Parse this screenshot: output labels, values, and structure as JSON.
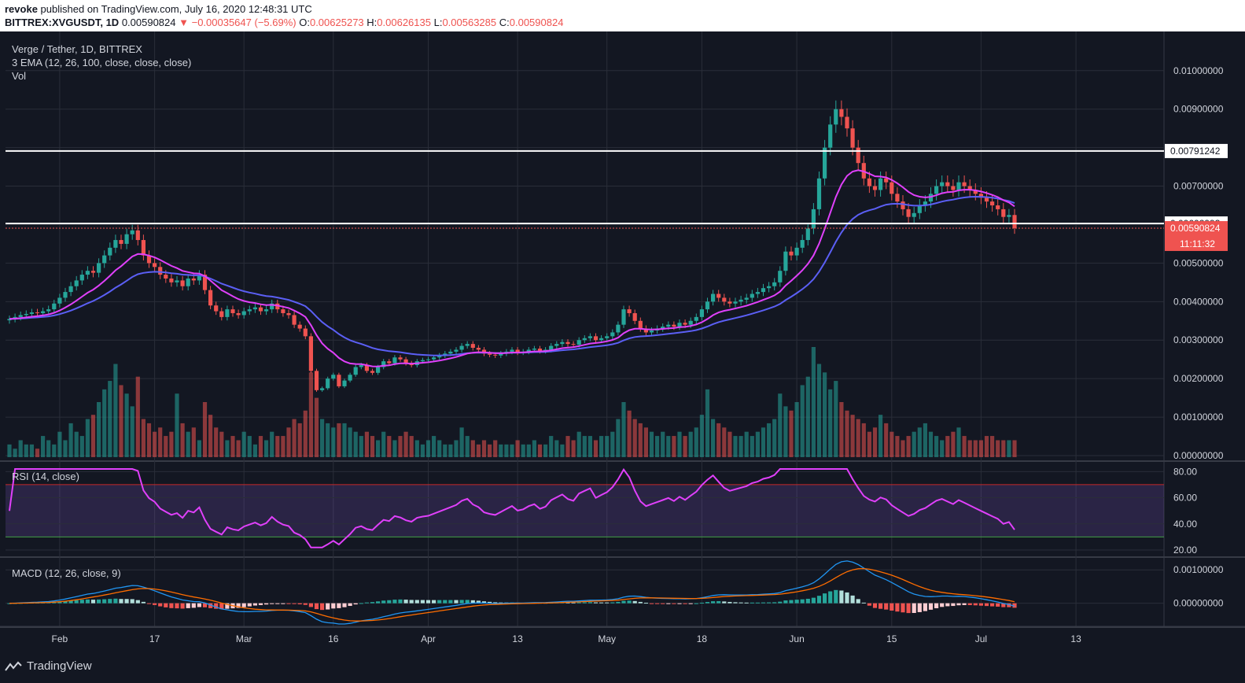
{
  "header": {
    "author": "revoke",
    "published_text": "published on TradingView.com, July 16, 2020 12:48:31 UTC",
    "symbol_line": "BITTREX:XVGUSDT, 1D",
    "last": "0.00590824",
    "change": "▼ −0.00035647 (−5.69%)",
    "o_label": "O:",
    "o_value": "0.00625273",
    "h_label": "H:",
    "h_value": "0.00626135",
    "l_label": "L:",
    "l_value": "0.00563285",
    "c_label": "C:",
    "c_value": "0.00590824"
  },
  "legends": {
    "title": "Verge / Tether, 1D, BITTREX",
    "ema": "3 EMA (12, 26, 100, close, close, close)",
    "vol": "Vol",
    "rsi": "RSI (14, close)",
    "macd": "MACD (12, 26, close, 9)"
  },
  "footer": {
    "brand": "TradingView"
  },
  "colors": {
    "bg": "#131722",
    "grid": "#2a2e39",
    "up": "#26a69a",
    "down": "#ef5350",
    "ema12": "#e040fb",
    "ema26": "#5b5ff5",
    "rsi": "#e040fb",
    "macd": "#2196f3",
    "signal": "#ff6d00"
  },
  "chart_data": [
    {
      "type": "candlestick",
      "title": "Verge / Tether, 1D, BITTREX",
      "x_ticks": [
        "Feb",
        "17",
        "Mar",
        "16",
        "Apr",
        "13",
        "May",
        "18",
        "Jun",
        "15",
        "Jul",
        "13"
      ],
      "y_ticks": [
        "0.01000000",
        "0.00900000",
        "0.00700000",
        "0.00500000",
        "0.00400000",
        "0.00300000",
        "0.00200000",
        "0.00100000",
        "0.00000000"
      ],
      "ylim": [
        0,
        0.0102
      ],
      "horizontal_lines": [
        {
          "value": 0.00791242,
          "label": "0.00791242"
        },
        {
          "value": 0.00602993,
          "label": "0.00602993"
        }
      ],
      "last_price": {
        "value": 0.00590824,
        "label": "0.00590824",
        "countdown": "11:11:32"
      },
      "close_series": [
        0.00355,
        0.0036,
        0.00365,
        0.00368,
        0.00372,
        0.0037,
        0.00375,
        0.0038,
        0.00395,
        0.0041,
        0.00425,
        0.0044,
        0.00455,
        0.0047,
        0.0048,
        0.00475,
        0.005,
        0.0052,
        0.0054,
        0.0056,
        0.0055,
        0.00575,
        0.00585,
        0.0056,
        0.0052,
        0.005,
        0.0049,
        0.0047,
        0.0046,
        0.0045,
        0.00455,
        0.0044,
        0.0046,
        0.00455,
        0.0047,
        0.0043,
        0.0039,
        0.00375,
        0.0036,
        0.0038,
        0.0037,
        0.00365,
        0.00375,
        0.0038,
        0.00385,
        0.00375,
        0.0038,
        0.00395,
        0.0038,
        0.0037,
        0.00365,
        0.0034,
        0.0033,
        0.0031,
        0.0022,
        0.0017,
        0.00175,
        0.002,
        0.0021,
        0.0018,
        0.00195,
        0.0021,
        0.0023,
        0.00235,
        0.0022,
        0.00215,
        0.0023,
        0.00245,
        0.0024,
        0.00255,
        0.0025,
        0.0024,
        0.00235,
        0.00245,
        0.00248,
        0.0025,
        0.00255,
        0.0026,
        0.00265,
        0.0027,
        0.00275,
        0.00285,
        0.0029,
        0.0028,
        0.00275,
        0.00265,
        0.00262,
        0.0026,
        0.00265,
        0.0027,
        0.00275,
        0.00268,
        0.0027,
        0.00275,
        0.00278,
        0.00272,
        0.00275,
        0.00285,
        0.0029,
        0.00295,
        0.0029,
        0.00288,
        0.003,
        0.00305,
        0.0031,
        0.003,
        0.00305,
        0.0031,
        0.0032,
        0.0034,
        0.0038,
        0.0037,
        0.0035,
        0.0033,
        0.0032,
        0.00325,
        0.0033,
        0.00335,
        0.0034,
        0.00335,
        0.00345,
        0.0034,
        0.0035,
        0.0036,
        0.0038,
        0.004,
        0.0042,
        0.0041,
        0.004,
        0.00395,
        0.004,
        0.00405,
        0.0041,
        0.0042,
        0.00425,
        0.00435,
        0.0044,
        0.0045,
        0.0048,
        0.0053,
        0.0052,
        0.0054,
        0.0056,
        0.0059,
        0.0064,
        0.0072,
        0.008,
        0.0086,
        0.009,
        0.0088,
        0.0085,
        0.008,
        0.0076,
        0.0072,
        0.007,
        0.0069,
        0.0072,
        0.0071,
        0.0068,
        0.0066,
        0.0064,
        0.0062,
        0.0063,
        0.0065,
        0.0066,
        0.0068,
        0.007,
        0.0071,
        0.007,
        0.0069,
        0.0071,
        0.007,
        0.0069,
        0.0068,
        0.0067,
        0.0066,
        0.0065,
        0.0064,
        0.0062,
        0.00625,
        0.00591
      ],
      "volume_series": [
        "0.3",
        "0.2",
        "0.4",
        "0.3",
        "0.3",
        "0.2",
        "0.5",
        "0.4",
        "0.3",
        "0.6",
        "0.4",
        "0.8",
        "0.6",
        "0.5",
        "0.9",
        "1.0",
        "1.3",
        "1.6",
        "1.8",
        "2.2",
        "1.7",
        "1.5",
        "1.2",
        "1.9",
        "0.9",
        "0.8",
        "0.6",
        "0.7",
        "0.5",
        "0.6",
        "1.5",
        "0.8",
        "0.6",
        "0.7",
        "0.4",
        "1.3",
        "1.0",
        "0.7",
        "0.6",
        "0.4",
        "0.5",
        "0.4",
        "0.6",
        "0.5",
        "0.3",
        "0.5",
        "0.4",
        "0.6",
        "0.5",
        "0.5",
        "0.7",
        "0.9",
        "0.8",
        "1.1",
        "2.0",
        "1.4",
        "0.9",
        "0.8",
        "0.7",
        "0.8",
        "0.8",
        "0.7",
        "0.6",
        "0.5",
        "0.6",
        "0.5",
        "0.4",
        "0.6",
        "0.5",
        "0.4",
        "0.5",
        "0.6",
        "0.5",
        "0.4",
        "0.3",
        "0.4",
        "0.5",
        "0.4",
        "0.3",
        "0.3",
        "0.4",
        "0.7",
        "0.5",
        "0.4",
        "0.3",
        "0.4",
        "0.3",
        "0.4",
        "0.3",
        "0.3",
        "0.3",
        "0.4",
        "0.3",
        "0.3",
        "0.4",
        "0.3",
        "0.3",
        "0.5",
        "0.4",
        "0.3",
        "0.5",
        "0.4",
        "0.6",
        "0.5",
        "0.5",
        "0.4",
        "0.5",
        "0.5",
        "0.6",
        "0.9",
        "1.3",
        "1.1",
        "0.9",
        "0.8",
        "0.7",
        "0.6",
        "0.5",
        "0.6",
        "0.5",
        "0.5",
        "0.6",
        "0.5",
        "0.6",
        "0.7",
        "1.0",
        "1.6",
        "0.9",
        "0.8",
        "0.7",
        "0.6",
        "0.5",
        "0.5",
        "0.6",
        "0.5",
        "0.6",
        "0.7",
        "0.8",
        "0.9",
        "1.5",
        "1.2",
        "1.1",
        "1.3",
        "1.7",
        "1.9",
        "2.6",
        "2.2",
        "2.0",
        "1.6",
        "1.8",
        "1.3",
        "1.1",
        "1.0",
        "0.9",
        "0.8",
        "0.6",
        "0.7",
        "1.0",
        "0.8",
        "0.6",
        "0.5",
        "0.4",
        "0.5",
        "0.6",
        "0.7",
        "0.8",
        "0.6",
        "0.5",
        "0.4",
        "0.5",
        "0.6",
        "0.7",
        "0.5",
        "0.4",
        "0.4",
        "0.4",
        "0.5",
        "0.5",
        "0.4",
        "0.4",
        "0.4",
        "0.4"
      ]
    },
    {
      "type": "line",
      "title": "RSI (14, close)",
      "y_ticks": [
        "80.00",
        "60.00",
        "40.00",
        "20.00"
      ],
      "ylim": [
        20,
        82
      ],
      "bands": [
        70,
        30
      ]
    },
    {
      "type": "line",
      "title": "MACD (12, 26, close, 9)",
      "y_ticks": [
        "0.00100000",
        "0.00000000"
      ]
    }
  ]
}
